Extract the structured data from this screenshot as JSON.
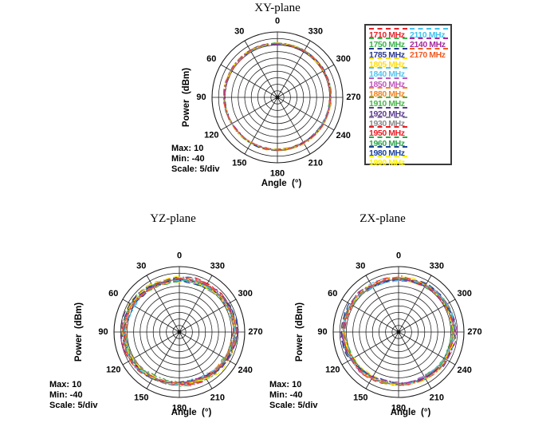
{
  "figure": {
    "background": "#ffffff"
  },
  "frequencies_mhz": [
    1710,
    1750,
    1785,
    1805,
    1840,
    1850,
    1880,
    1910,
    1920,
    1930,
    1950,
    1960,
    1980,
    1990,
    2110,
    2140,
    2170
  ],
  "legend": {
    "columns": [
      {
        "entries": [
          {
            "label": "1710 MHz",
            "color": "#E8232A",
            "dash": "8,4"
          },
          {
            "label": "1750 MHz",
            "color": "#3BB44A",
            "dash": "8,4"
          },
          {
            "label": "1785 MHz",
            "color": "#2B3990",
            "dash": "8,4"
          },
          {
            "label": "1805 MHz",
            "color": "#FFDE17",
            "dash": "8,4"
          },
          {
            "label": "1840 MHz",
            "color": "#56C5F0",
            "dash": "8,3,2,3"
          },
          {
            "label": "1850 MHz",
            "color": "#C157BE",
            "dash": "8,3,2,3"
          },
          {
            "label": "1880 MHz",
            "color": "#F5821F",
            "dash": "8,4"
          },
          {
            "label": "1910 MHz",
            "color": "#47B749",
            "dash": "8,3,2,3"
          },
          {
            "label": "1920 MHz",
            "color": "#5E3A94",
            "dash": "8,4"
          },
          {
            "label": "1930 MHz",
            "color": "#8A8A8D",
            "dash": "8,4"
          },
          {
            "label": "1950 MHz",
            "color": "#EC1C24",
            "dash": "8,4"
          },
          {
            "label": "1960 MHz",
            "color": "#2BA84A",
            "dash": "8,3,2,3"
          },
          {
            "label": "1980 MHz",
            "color": "#1B449C",
            "dash": "8,4"
          },
          {
            "label": "1990 MHz",
            "color": "#FFF200",
            "dash": "8,4"
          }
        ]
      },
      {
        "entries": [
          {
            "label": "2110 MHz",
            "color": "#45C2EE",
            "dash": "8,3,2,3"
          },
          {
            "label": "2140 MHz",
            "color": "#A62A9E",
            "dash": "8,3,2,3"
          },
          {
            "label": "2170 MHz",
            "color": "#F15A22",
            "dash": "8,3,2,3"
          }
        ]
      }
    ]
  },
  "chart_data": [
    {
      "type": "polar",
      "title": "XY-plane",
      "radial_axis_label": "Power  (dBm)",
      "angular_axis_label": "Angle  (°)",
      "max_dbm": 10,
      "min_dbm": -40,
      "scale_dbm_per_div": 5,
      "rings": 10,
      "annotations": [
        "Max: 10",
        "Min: -40",
        "Scale: 5/div"
      ],
      "angle_ticks_deg": [
        0,
        30,
        60,
        90,
        120,
        150,
        180,
        210,
        240,
        270,
        300,
        330
      ],
      "angle_direction": "counterclockwise",
      "series_frequencies_mhz": [
        1710,
        1750,
        1785,
        1805,
        1840,
        1850,
        1880,
        1910,
        1920,
        1930,
        1950,
        1960,
        1980,
        1990,
        2110,
        2140,
        2170
      ],
      "approx_profile": {
        "mean_dbm": 0.6,
        "series_spread_dbm": 0.8,
        "cos_theta_dbm": 0.5,
        "cos_2theta_dbm": 0.0,
        "ripple_dbm": 0.5,
        "noise_dbm": 0.5
      }
    },
    {
      "type": "polar",
      "title": "YZ-plane",
      "radial_axis_label": "Power  (dBm)",
      "angular_axis_label": "Angle  (°)",
      "max_dbm": 10,
      "min_dbm": -40,
      "scale_dbm_per_div": 5,
      "rings": 10,
      "annotations": [
        "Max: 10",
        "Min: -40",
        "Scale: 5/div"
      ],
      "angle_ticks_deg": [
        0,
        30,
        60,
        90,
        120,
        150,
        180,
        210,
        240,
        270,
        300,
        330
      ],
      "angle_direction": "counterclockwise",
      "series_frequencies_mhz": [
        1710,
        1750,
        1785,
        1805,
        1840,
        1850,
        1880,
        1910,
        1920,
        1930,
        1950,
        1960,
        1980,
        1990,
        2110,
        2140,
        2170
      ],
      "approx_profile": {
        "mean_dbm": 1.0,
        "series_spread_dbm": 1.2,
        "cos_theta_dbm": 0.3,
        "cos_2theta_dbm": -1.5,
        "ripple_dbm": 2.0,
        "noise_dbm": 0.9
      }
    },
    {
      "type": "polar",
      "title": "ZX-plane",
      "radial_axis_label": "Power  (dBm)",
      "angular_axis_label": "Angle  (°)",
      "max_dbm": 10,
      "min_dbm": -40,
      "scale_dbm_per_div": 5,
      "rings": 10,
      "annotations": [
        "Max: 10",
        "Min: -40",
        "Scale: 5/div"
      ],
      "angle_ticks_deg": [
        0,
        30,
        60,
        90,
        120,
        150,
        180,
        210,
        240,
        270,
        300,
        330
      ],
      "angle_direction": "counterclockwise",
      "series_frequencies_mhz": [
        1710,
        1750,
        1785,
        1805,
        1840,
        1850,
        1880,
        1910,
        1920,
        1930,
        1950,
        1960,
        1980,
        1990,
        2110,
        2140,
        2170
      ],
      "approx_profile": {
        "mean_dbm": 1.0,
        "series_spread_dbm": 1.0,
        "cos_theta_dbm": 0.4,
        "cos_2theta_dbm": -1.2,
        "ripple_dbm": 1.6,
        "noise_dbm": 0.8
      }
    }
  ]
}
